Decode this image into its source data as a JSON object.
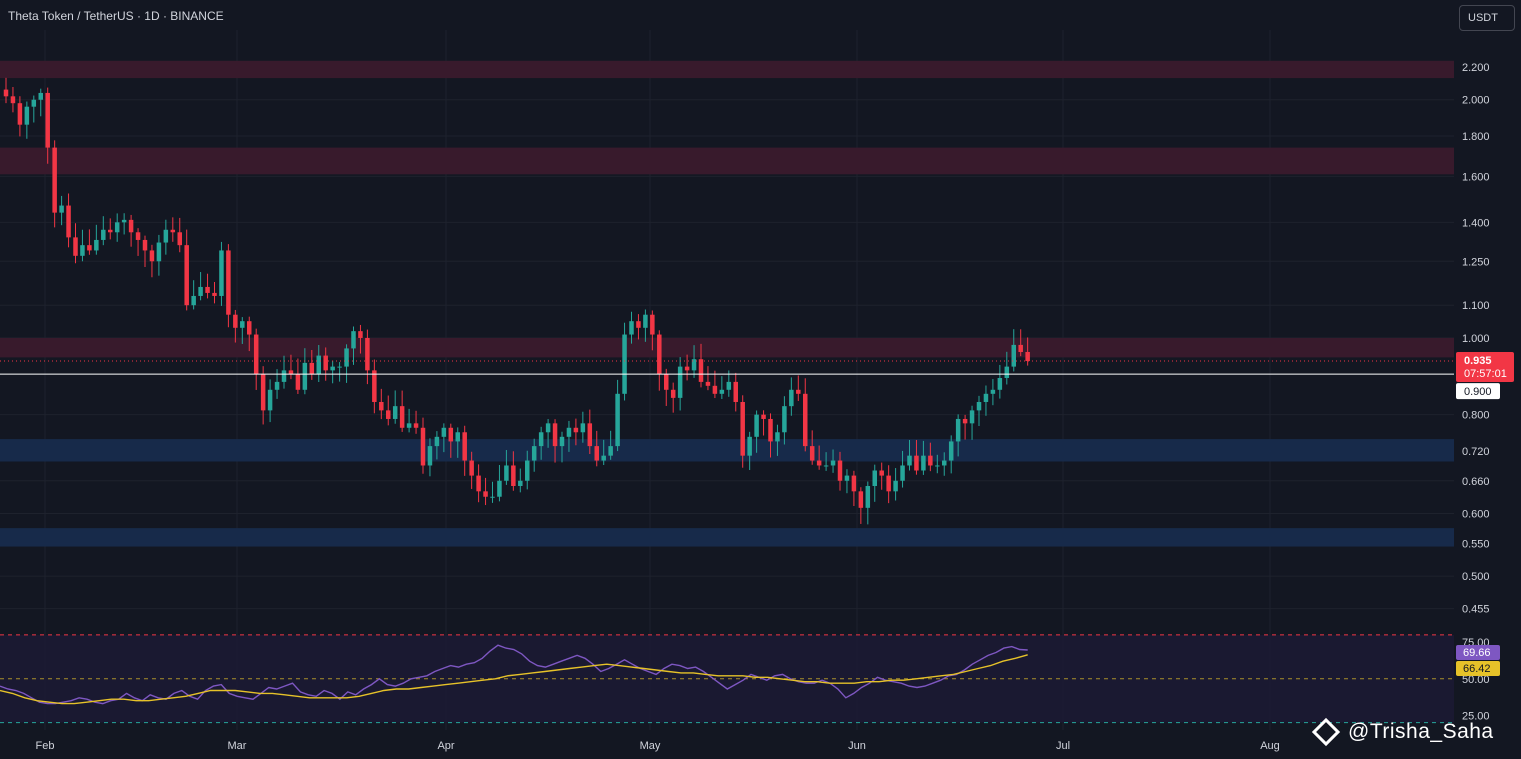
{
  "header": {
    "title": "Theta Token / TetherUS · 1D · BINANCE",
    "currency_label": "USDT"
  },
  "watermark": {
    "text": "@Trisha_Saha"
  },
  "colors": {
    "background": "#131722",
    "grid": "#1e222d",
    "up": "#26a69a",
    "down": "#f23645",
    "red_zone": "#3a1a2d",
    "blue_zone": "#172b4d",
    "rsi": "#7e57c2",
    "rsi_ma": "#e6c229"
  },
  "chart_data": [
    {
      "type": "candlestick",
      "title": "Theta Token / TetherUS · 1D · BINANCE",
      "y_scale": "log",
      "ylim": [
        0.43,
        2.45
      ],
      "y_ticks": [
        "2.200",
        "2.000",
        "1.800",
        "1.600",
        "1.400",
        "1.250",
        "1.100",
        "1.000",
        "0.800",
        "0.720",
        "0.660",
        "0.600",
        "0.550",
        "0.500",
        "0.455"
      ],
      "x_ticks": [
        "Feb",
        "Mar",
        "Apr",
        "May",
        "Jun",
        "Jul",
        "Aug"
      ],
      "zones": [
        {
          "kind": "resistance",
          "from": 2.13,
          "to": 2.24
        },
        {
          "kind": "resistance",
          "from": 1.61,
          "to": 1.74
        },
        {
          "kind": "resistance",
          "from": 0.945,
          "to": 1.0
        },
        {
          "kind": "support",
          "from": 0.698,
          "to": 0.745
        },
        {
          "kind": "support",
          "from": 0.545,
          "to": 0.575
        }
      ],
      "last_price": {
        "value": "0.935",
        "countdown": "07:57:01"
      },
      "level_line": {
        "value": "0.900"
      },
      "closes": [
        2.02,
        1.98,
        1.86,
        1.96,
        2.0,
        2.04,
        1.74,
        1.44,
        1.47,
        1.34,
        1.27,
        1.31,
        1.29,
        1.33,
        1.37,
        1.36,
        1.4,
        1.41,
        1.36,
        1.33,
        1.29,
        1.25,
        1.32,
        1.37,
        1.36,
        1.31,
        1.1,
        1.13,
        1.16,
        1.14,
        1.13,
        1.29,
        1.07,
        1.03,
        1.05,
        1.01,
        0.9,
        0.81,
        0.86,
        0.88,
        0.91,
        0.9,
        0.86,
        0.93,
        0.9,
        0.95,
        0.91,
        0.92,
        0.92,
        0.97,
        1.02,
        1.0,
        0.91,
        0.83,
        0.81,
        0.79,
        0.82,
        0.77,
        0.78,
        0.77,
        0.69,
        0.73,
        0.75,
        0.77,
        0.74,
        0.76,
        0.7,
        0.67,
        0.64,
        0.63,
        0.63,
        0.66,
        0.69,
        0.65,
        0.66,
        0.7,
        0.73,
        0.76,
        0.78,
        0.73,
        0.75,
        0.77,
        0.76,
        0.78,
        0.73,
        0.7,
        0.71,
        0.73,
        0.85,
        1.01,
        1.05,
        1.03,
        1.07,
        1.01,
        0.9,
        0.86,
        0.84,
        0.92,
        0.91,
        0.94,
        0.88,
        0.87,
        0.85,
        0.86,
        0.88,
        0.83,
        0.71,
        0.75,
        0.8,
        0.79,
        0.74,
        0.76,
        0.82,
        0.86,
        0.85,
        0.73,
        0.7,
        0.69,
        0.69,
        0.7,
        0.66,
        0.67,
        0.64,
        0.61,
        0.65,
        0.68,
        0.67,
        0.64,
        0.66,
        0.69,
        0.71,
        0.68,
        0.71,
        0.69,
        0.69,
        0.7,
        0.74,
        0.79,
        0.78,
        0.81,
        0.83,
        0.85,
        0.86,
        0.89,
        0.92,
        0.98,
        0.96,
        0.935
      ],
      "series": [
        {
          "name": "Theta Token / TetherUS"
        }
      ]
    },
    {
      "type": "line",
      "ylim": [
        17,
        82
      ],
      "y_ticks": [
        "75.00",
        "50.00",
        "25.00"
      ],
      "reference_lines": [
        80,
        50,
        20
      ],
      "series": [
        {
          "name": "RSI",
          "last_value": "69.66",
          "values": [
            45,
            43,
            42,
            40,
            37,
            34,
            33,
            33,
            34,
            35,
            37,
            36,
            34,
            33,
            35,
            36,
            40,
            37,
            35,
            39,
            37,
            36,
            40,
            42,
            38,
            36,
            42,
            45,
            46,
            40,
            38,
            37,
            36,
            40,
            44,
            43,
            45,
            47,
            41,
            39,
            38,
            42,
            40,
            36,
            41,
            39,
            43,
            46,
            50,
            46,
            45,
            47,
            50,
            51,
            52,
            55,
            57,
            59,
            58,
            60,
            61,
            64,
            69,
            73,
            71,
            70,
            67,
            62,
            59,
            58,
            60,
            62,
            64,
            66,
            64,
            60,
            55,
            57,
            60,
            63,
            60,
            57,
            55,
            53,
            57,
            60,
            59,
            57,
            58,
            55,
            51,
            47,
            43,
            46,
            49,
            53,
            51,
            49,
            52,
            53,
            50,
            48,
            47,
            47,
            49,
            47,
            43,
            37,
            40,
            44,
            47,
            51,
            49,
            48,
            47,
            45,
            44,
            45,
            47,
            49,
            52,
            53,
            56,
            60,
            63,
            66,
            68,
            71,
            72,
            70,
            69.66
          ]
        },
        {
          "name": "RSI-based MA",
          "last_value": "66.42",
          "values": [
            42,
            40,
            37,
            35,
            34,
            33,
            33,
            34,
            35,
            36,
            36,
            35,
            35,
            36,
            37,
            38,
            40,
            42,
            42,
            42,
            41,
            40,
            40,
            39,
            38,
            37,
            37,
            37,
            37,
            38,
            40,
            42,
            43,
            43,
            44,
            45,
            46,
            47,
            48,
            49,
            50,
            52,
            53,
            54,
            55,
            56,
            57,
            58,
            59,
            60,
            59,
            58,
            57,
            56,
            55,
            54,
            54,
            53,
            52,
            52,
            52,
            51,
            51,
            50,
            49,
            48,
            48,
            47,
            47,
            47,
            48,
            48,
            49,
            49,
            50,
            51,
            52,
            53,
            55,
            57,
            59,
            62,
            64,
            66.42
          ]
        }
      ]
    }
  ]
}
